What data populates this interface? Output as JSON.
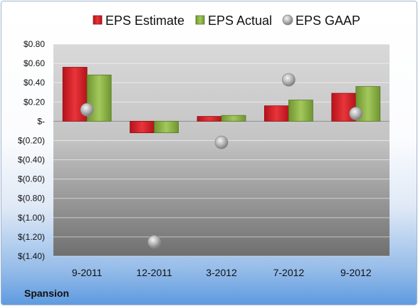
{
  "chart_data": {
    "type": "bar",
    "categories": [
      "9-2011",
      "12-2011",
      "3-2012",
      "7-2012",
      "9-2012"
    ],
    "series": [
      {
        "name": "EPS Estimate",
        "kind": "bar",
        "color": "#d9262c",
        "values": [
          0.56,
          -0.12,
          0.05,
          0.16,
          0.29
        ]
      },
      {
        "name": "EPS Actual",
        "kind": "bar",
        "color": "#8db44a",
        "values": [
          0.48,
          -0.12,
          0.06,
          0.22,
          0.36
        ]
      },
      {
        "name": "EPS GAAP",
        "kind": "scatter",
        "color": "#a6a6a6",
        "values": [
          0.12,
          -1.25,
          -0.22,
          0.43,
          0.08
        ]
      }
    ],
    "ylim": [
      -1.4,
      0.8
    ],
    "yticks": [
      {
        "value": 0.8,
        "label": "$0.80"
      },
      {
        "value": 0.6,
        "label": "$0.60"
      },
      {
        "value": 0.4,
        "label": "$0.40"
      },
      {
        "value": 0.2,
        "label": "$0.20"
      },
      {
        "value": 0.0,
        "label": "$-"
      },
      {
        "value": -0.2,
        "label": "$(0.20)"
      },
      {
        "value": -0.4,
        "label": "$(0.40)"
      },
      {
        "value": -0.6,
        "label": "$(0.60)"
      },
      {
        "value": -0.8,
        "label": "$(0.80)"
      },
      {
        "value": -1.0,
        "label": "$(1.00)"
      },
      {
        "value": -1.2,
        "label": "$(1.20)"
      },
      {
        "value": -1.4,
        "label": "$(1.40)"
      }
    ],
    "grid": true,
    "legend_position": "top"
  },
  "footer": {
    "company": "Spansion"
  }
}
